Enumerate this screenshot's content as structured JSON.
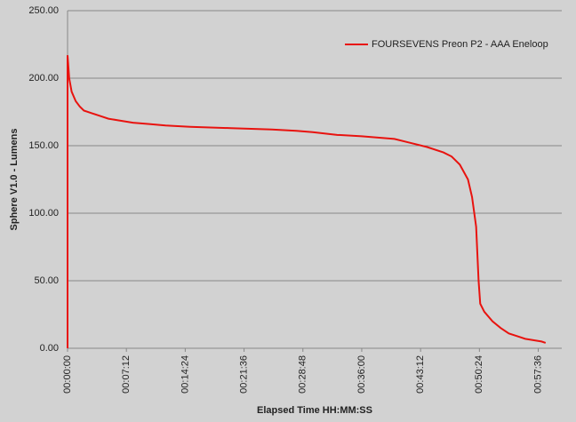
{
  "chart_data": {
    "type": "line",
    "x_label": "Elapsed Time HH:MM:SS",
    "y_label": "Sphere V1.0 - Lumens",
    "series": [
      {
        "name": "FOURSEVENS Preon P2 - AAA Eneloop",
        "color": "#e8130f",
        "x": [
          0,
          0,
          0.2,
          0.5,
          1,
          1.5,
          2,
          3,
          4,
          5,
          6,
          7,
          8,
          10,
          12,
          15,
          20,
          25,
          28,
          30,
          33,
          36,
          38,
          40,
          42,
          44,
          46,
          47,
          48,
          49,
          49.5,
          50,
          50.3,
          50.5,
          51,
          52,
          53,
          54,
          55,
          56,
          57,
          58,
          58.5
        ],
        "values": [
          0,
          217,
          200,
          190,
          183,
          179,
          176,
          174,
          172,
          170,
          169,
          168,
          167,
          166,
          165,
          164,
          163,
          162,
          161,
          160,
          158,
          157,
          156,
          155,
          152,
          149,
          145,
          142,
          136,
          125,
          112,
          90,
          50,
          33,
          27,
          20,
          15,
          11,
          9,
          7,
          6,
          5,
          4
        ]
      }
    ],
    "xlim": [
      0,
      60.48
    ],
    "xticks": [
      {
        "value": 0,
        "label": "00:00:00"
      },
      {
        "value": 7.2,
        "label": "00:07:12"
      },
      {
        "value": 14.4,
        "label": "00:14:24"
      },
      {
        "value": 21.6,
        "label": "00:21:36"
      },
      {
        "value": 28.8,
        "label": "00:28:48"
      },
      {
        "value": 36,
        "label": "00:36:00"
      },
      {
        "value": 43.2,
        "label": "00:43:12"
      },
      {
        "value": 50.4,
        "label": "00:50:24"
      },
      {
        "value": 57.6,
        "label": "00:57:36"
      }
    ],
    "ylim": [
      0,
      250
    ],
    "yticks": [
      {
        "value": 0,
        "label": "0.00"
      },
      {
        "value": 50,
        "label": "50.00"
      },
      {
        "value": 100,
        "label": "100.00"
      },
      {
        "value": 150,
        "label": "150.00"
      },
      {
        "value": 200,
        "label": "200.00"
      },
      {
        "value": 250,
        "label": "250.00"
      }
    ],
    "grid": true,
    "legend": "top-right"
  }
}
